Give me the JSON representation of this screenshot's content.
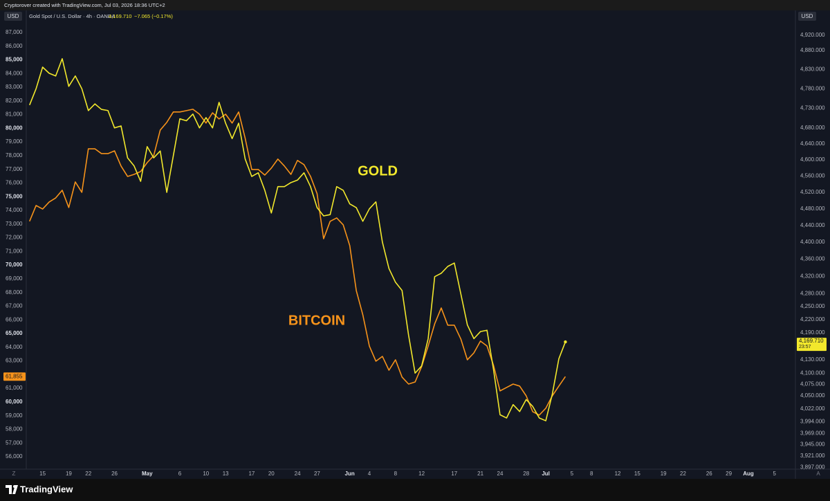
{
  "chart_data": {
    "type": "line",
    "subtitle": "Cryptorover created with TradingView.com, Jul 03, 2026 18:36 UTC+2",
    "title": "Gold Spot / U.S. Dollar · 4h · OANDA",
    "header_price": "4,169.710",
    "header_change": "−7.065 (−0.17%)",
    "y_unit": "USD",
    "y2_unit": "USD",
    "annotations": [
      "GOLD",
      "BITCOIN"
    ],
    "scale_buttons": [
      "Z",
      "A"
    ],
    "grid": false,
    "y2log": true,
    "x": [
      13,
      14,
      15,
      16,
      17,
      18,
      19,
      20,
      21,
      22,
      23,
      24,
      25,
      26,
      27,
      28,
      29,
      30,
      31,
      32,
      33,
      34,
      35,
      36,
      37,
      38,
      39,
      40,
      41,
      42,
      43,
      44,
      45,
      46,
      47,
      48,
      49,
      50,
      51,
      52,
      53,
      54,
      55,
      56,
      57,
      58,
      59,
      60,
      61,
      62,
      63,
      64,
      65,
      66,
      67,
      68,
      69,
      70,
      71,
      72,
      73,
      74,
      75,
      76,
      77,
      78,
      79,
      80,
      81,
      82,
      83,
      84,
      85,
      86,
      87,
      88,
      89,
      90,
      91,
      92,
      93,
      94,
      95
    ],
    "xlim": [
      12.5,
      130.2
    ],
    "xticks": [
      {
        "value": 15,
        "label": "15"
      },
      {
        "value": 19,
        "label": "19"
      },
      {
        "value": 22,
        "label": "22"
      },
      {
        "value": 26,
        "label": "26"
      },
      {
        "value": 31,
        "label": "May"
      },
      {
        "value": 36,
        "label": "6"
      },
      {
        "value": 40,
        "label": "10"
      },
      {
        "value": 43,
        "label": "13"
      },
      {
        "value": 47,
        "label": "17"
      },
      {
        "value": 50,
        "label": "20"
      },
      {
        "value": 54,
        "label": "24"
      },
      {
        "value": 57,
        "label": "27"
      },
      {
        "value": 62,
        "label": "Jun"
      },
      {
        "value": 65,
        "label": "4"
      },
      {
        "value": 69,
        "label": "8"
      },
      {
        "value": 73,
        "label": "12"
      },
      {
        "value": 78,
        "label": "17"
      },
      {
        "value": 82,
        "label": "21"
      },
      {
        "value": 85,
        "label": "24"
      },
      {
        "value": 89,
        "label": "28"
      },
      {
        "value": 92,
        "label": "Jul"
      },
      {
        "value": 96,
        "label": "5"
      },
      {
        "value": 99,
        "label": "8"
      },
      {
        "value": 103,
        "label": "12"
      },
      {
        "value": 106,
        "label": "15"
      },
      {
        "value": 110,
        "label": "19"
      },
      {
        "value": 113,
        "label": "22"
      },
      {
        "value": 117,
        "label": "26"
      },
      {
        "value": 120,
        "label": "29"
      },
      {
        "value": 123,
        "label": "Aug"
      },
      {
        "value": 127,
        "label": "5"
      }
    ],
    "ylim": [
      55090,
      87350
    ],
    "yticks": [
      {
        "value": 87000,
        "label": "87,000"
      },
      {
        "value": 86000,
        "label": "86,000"
      },
      {
        "value": 85000,
        "label": "85,000"
      },
      {
        "value": 84000,
        "label": "84,000"
      },
      {
        "value": 83000,
        "label": "83,000"
      },
      {
        "value": 82000,
        "label": "82,000"
      },
      {
        "value": 81000,
        "label": "81,000"
      },
      {
        "value": 80000,
        "label": "80,000"
      },
      {
        "value": 79000,
        "label": "79,000"
      },
      {
        "value": 78000,
        "label": "78,000"
      },
      {
        "value": 77000,
        "label": "77,000"
      },
      {
        "value": 76000,
        "label": "76,000"
      },
      {
        "value": 75000,
        "label": "75,000"
      },
      {
        "value": 74000,
        "label": "74,000"
      },
      {
        "value": 73000,
        "label": "73,000"
      },
      {
        "value": 72000,
        "label": "72,000"
      },
      {
        "value": 71000,
        "label": "71,000"
      },
      {
        "value": 70000,
        "label": "70,000"
      },
      {
        "value": 69000,
        "label": "69,000"
      },
      {
        "value": 68000,
        "label": "68,000"
      },
      {
        "value": 67000,
        "label": "67,000"
      },
      {
        "value": 66000,
        "label": "66,000"
      },
      {
        "value": 65000,
        "label": "65,000"
      },
      {
        "value": 64000,
        "label": "64,000"
      },
      {
        "value": 63000,
        "label": "63,000"
      },
      {
        "value": 61000,
        "label": "61,000"
      },
      {
        "value": 60000,
        "label": "60,000"
      },
      {
        "value": 59000,
        "label": "59,000"
      },
      {
        "value": 58000,
        "label": "58,000"
      },
      {
        "value": 57000,
        "label": "57,000"
      },
      {
        "value": 56000,
        "label": "56,000"
      }
    ],
    "y2lim": [
      3893,
      4940
    ],
    "y2ticks": [
      {
        "value": 4920,
        "label": "4,920.000"
      },
      {
        "value": 4880,
        "label": "4,880.000"
      },
      {
        "value": 4830,
        "label": "4,830.000"
      },
      {
        "value": 4780,
        "label": "4,780.000"
      },
      {
        "value": 4730,
        "label": "4,730.000"
      },
      {
        "value": 4680,
        "label": "4,680.000"
      },
      {
        "value": 4640,
        "label": "4,640.000"
      },
      {
        "value": 4600,
        "label": "4,600.000"
      },
      {
        "value": 4560,
        "label": "4,560.000"
      },
      {
        "value": 4520,
        "label": "4,520.000"
      },
      {
        "value": 4480,
        "label": "4,480.000"
      },
      {
        "value": 4440,
        "label": "4,440.000"
      },
      {
        "value": 4400,
        "label": "4,400.000"
      },
      {
        "value": 4360,
        "label": "4,360.000"
      },
      {
        "value": 4320,
        "label": "4,320.000"
      },
      {
        "value": 4280,
        "label": "4,280.000"
      },
      {
        "value": 4250,
        "label": "4,250.000"
      },
      {
        "value": 4220,
        "label": "4,220.000"
      },
      {
        "value": 4190,
        "label": "4,190.000"
      },
      {
        "value": 4130,
        "label": "4,130.000"
      },
      {
        "value": 4100,
        "label": "4,100.000"
      },
      {
        "value": 4075,
        "label": "4,075.000"
      },
      {
        "value": 4050,
        "label": "4,050.000"
      },
      {
        "value": 4022,
        "label": "4,022.000"
      },
      {
        "value": 3994,
        "label": "3,994.000"
      },
      {
        "value": 3969,
        "label": "3,969.000"
      },
      {
        "value": 3945,
        "label": "3,945.000"
      },
      {
        "value": 3921,
        "label": "3,921.000"
      },
      {
        "value": 3897,
        "label": "3,897.000"
      }
    ],
    "series": [
      {
        "name": "GOLD",
        "color": "#f2e82c",
        "axis": "y2",
        "last_label": "4,169.710",
        "countdown": "23:57",
        "values": [
          4738,
          4780,
          4836,
          4820,
          4813,
          4858,
          4786,
          4813,
          4780,
          4724,
          4741,
          4727,
          4724,
          4680,
          4685,
          4605,
          4585,
          4547,
          4633,
          4605,
          4622,
          4520,
          4610,
          4703,
          4698,
          4715,
          4680,
          4706,
          4680,
          4745,
          4692,
          4653,
          4692,
          4602,
          4559,
          4568,
          4525,
          4470,
          4534,
          4534,
          4544,
          4550,
          4568,
          4534,
          4483,
          4463,
          4466,
          4534,
          4525,
          4492,
          4483,
          4450,
          4480,
          4497,
          4400,
          4338,
          4306,
          4287,
          4185,
          4100,
          4116,
          4177,
          4319,
          4327,
          4343,
          4351,
          4279,
          4208,
          4177,
          4193,
          4196,
          4108,
          4009,
          4002,
          4031,
          4016,
          4042,
          4027,
          4002,
          3996,
          4054,
          4132,
          4169.71
        ]
      },
      {
        "name": "BITCOIN",
        "color": "#f7931a",
        "axis": "y",
        "last_label": "61,855",
        "values": [
          73200,
          74360,
          74100,
          74610,
          74910,
          75470,
          74210,
          76080,
          75320,
          78500,
          78500,
          78150,
          78150,
          78350,
          77240,
          76480,
          76630,
          76840,
          77490,
          78000,
          79870,
          80430,
          81190,
          81190,
          81290,
          81390,
          81030,
          80380,
          81130,
          80680,
          81030,
          80380,
          81190,
          79260,
          76990,
          76990,
          76580,
          77090,
          77750,
          77240,
          76630,
          77650,
          77340,
          76480,
          75220,
          71930,
          73200,
          73450,
          72940,
          71430,
          68140,
          66370,
          64090,
          62980,
          63330,
          62320,
          63080,
          61820,
          61310,
          61460,
          62580,
          64090,
          65710,
          66870,
          65610,
          65610,
          64600,
          63080,
          63590,
          64450,
          64090,
          62680,
          60810,
          61060,
          61310,
          61160,
          60450,
          59290,
          59040,
          59540,
          60450,
          61160,
          61855
        ]
      }
    ]
  },
  "footer": {
    "brand": "TradingView"
  }
}
